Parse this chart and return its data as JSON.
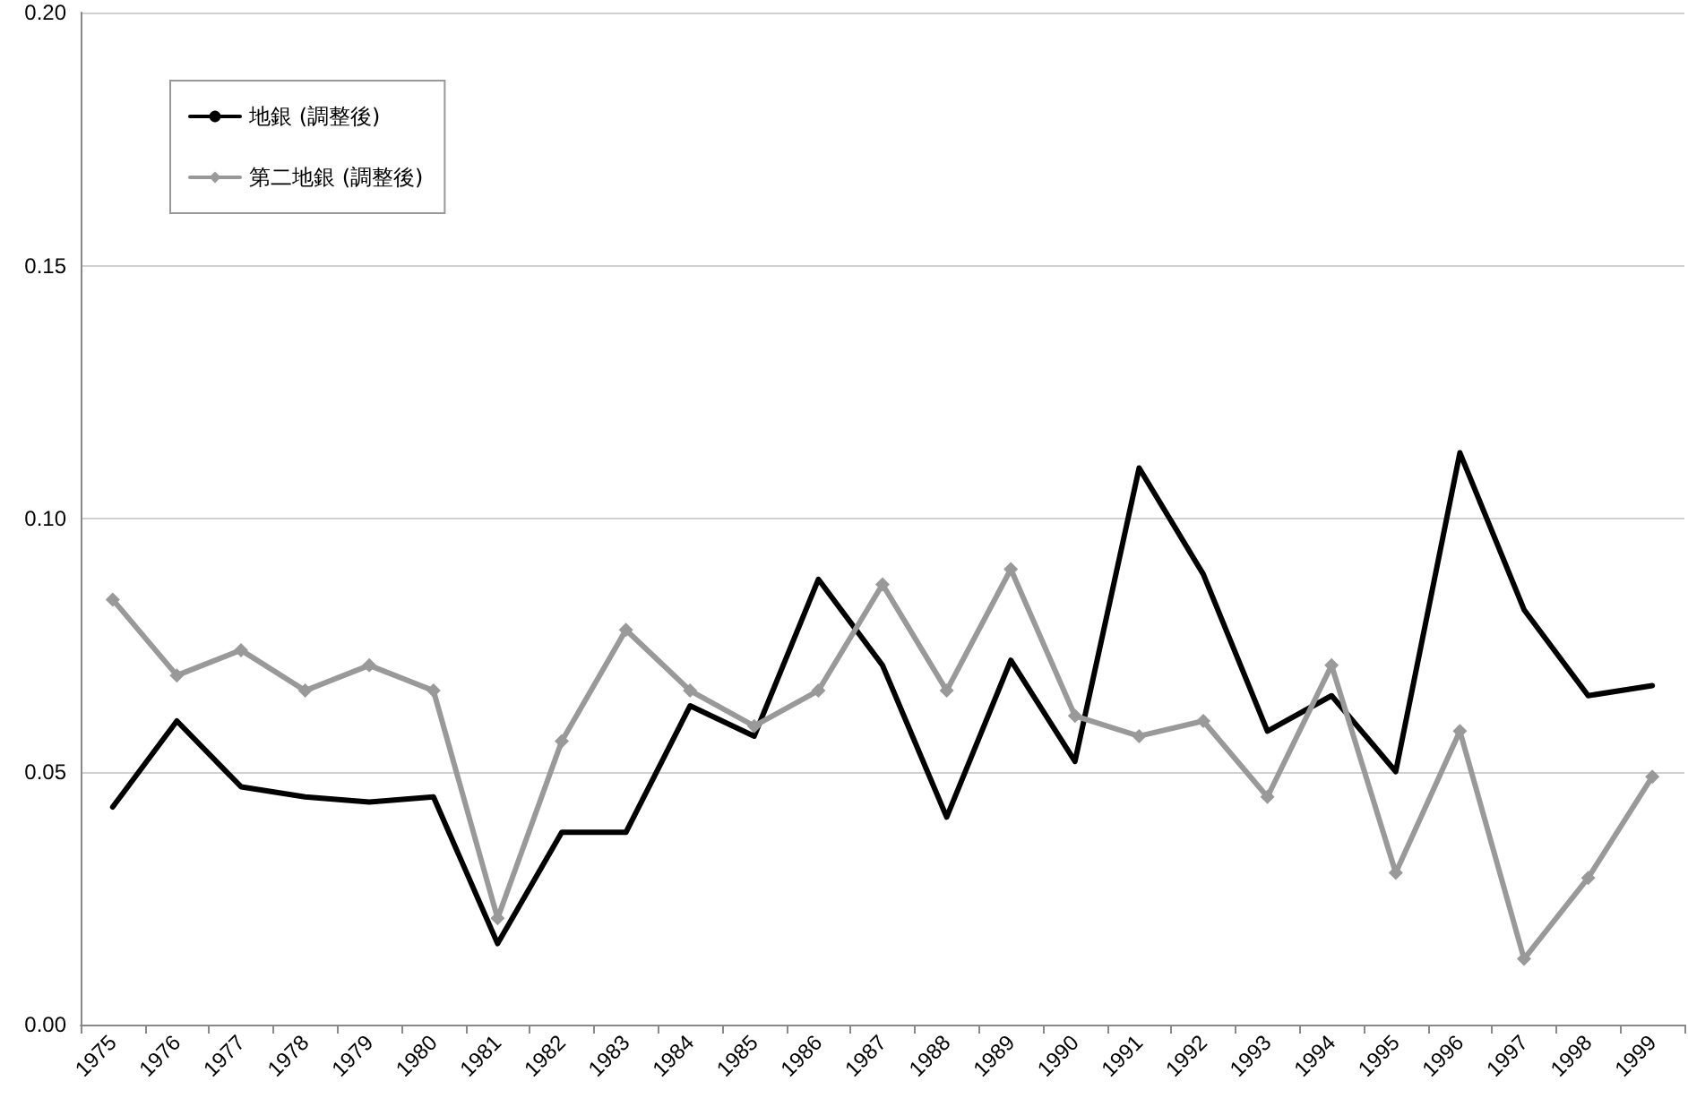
{
  "chart_data": {
    "type": "line",
    "categories": [
      "1975",
      "1976",
      "1977",
      "1978",
      "1979",
      "1980",
      "1981",
      "1982",
      "1983",
      "1984",
      "1985",
      "1986",
      "1987",
      "1988",
      "1989",
      "1990",
      "1991",
      "1992",
      "1993",
      "1994",
      "1995",
      "1996",
      "1997",
      "1998",
      "1999"
    ],
    "series": [
      {
        "name": "地銀 (調整後)",
        "color": "#000000",
        "marker": "none",
        "values": [
          0.043,
          0.06,
          0.047,
          0.045,
          0.044,
          0.045,
          0.016,
          0.038,
          0.038,
          0.063,
          0.057,
          0.088,
          0.071,
          0.041,
          0.072,
          0.052,
          0.11,
          0.089,
          0.058,
          0.065,
          0.05,
          0.113,
          0.082,
          0.065,
          0.067
        ]
      },
      {
        "name": "第二地銀 (調整後)",
        "color": "#999999",
        "marker": "diamond",
        "values": [
          0.084,
          0.069,
          0.074,
          0.066,
          0.071,
          0.066,
          0.021,
          0.056,
          0.078,
          0.066,
          0.059,
          0.066,
          0.087,
          0.066,
          0.09,
          0.061,
          0.057,
          0.06,
          0.045,
          0.071,
          0.03,
          0.058,
          0.013,
          0.029,
          0.049
        ]
      }
    ],
    "ylim": [
      0,
      0.2
    ],
    "yticks": [
      {
        "value": 0,
        "label": "0.00"
      },
      {
        "value": 0.05,
        "label": "0.05"
      },
      {
        "value": 0.1,
        "label": "0.10"
      },
      {
        "value": 0.15,
        "label": "0.15"
      },
      {
        "value": 0.2,
        "label": "0.20"
      }
    ],
    "grid": "y",
    "legend": "top left"
  }
}
